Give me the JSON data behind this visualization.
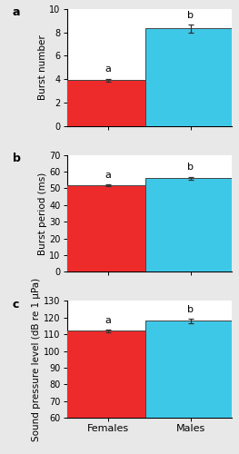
{
  "panel_a": {
    "categories": [
      "Females",
      "Males"
    ],
    "values": [
      3.9,
      8.35
    ],
    "errors": [
      0.15,
      0.35
    ],
    "ylim": [
      0,
      10
    ],
    "yticks": [
      0,
      2,
      4,
      6,
      8,
      10
    ],
    "ylabel": "Burst number",
    "label": "a",
    "sig_labels": [
      "a",
      "b"
    ]
  },
  "panel_b": {
    "categories": [
      "Females",
      "Males"
    ],
    "values": [
      52.0,
      56.2
    ],
    "errors": [
      0.6,
      0.8
    ],
    "ylim": [
      0,
      70
    ],
    "yticks": [
      0,
      10,
      20,
      30,
      40,
      50,
      60,
      70
    ],
    "ylabel": "Burst period (ms)",
    "label": "b",
    "sig_labels": [
      "a",
      "b"
    ]
  },
  "panel_c": {
    "categories": [
      "Females",
      "Males"
    ],
    "values": [
      112.0,
      118.0
    ],
    "errors": [
      1.0,
      1.2
    ],
    "ylim": [
      60,
      130
    ],
    "yticks": [
      60,
      70,
      80,
      90,
      100,
      110,
      120,
      130
    ],
    "ylabel": "Sound pressure level (dB re 1 μPa)",
    "label": "c",
    "sig_labels": [
      "a",
      "b"
    ]
  },
  "bar_colors": [
    "#ee2b2b",
    "#3ec8e8"
  ],
  "bar_width": 0.55,
  "edge_color": "#444444",
  "error_color": "#333333",
  "background_color": "#e8e8e8",
  "panel_bg": "#ffffff",
  "label_fontsize": 8,
  "tick_fontsize": 7,
  "ylabel_fontsize": 7.5,
  "sig_fontsize": 8,
  "panel_label_fontsize": 9
}
